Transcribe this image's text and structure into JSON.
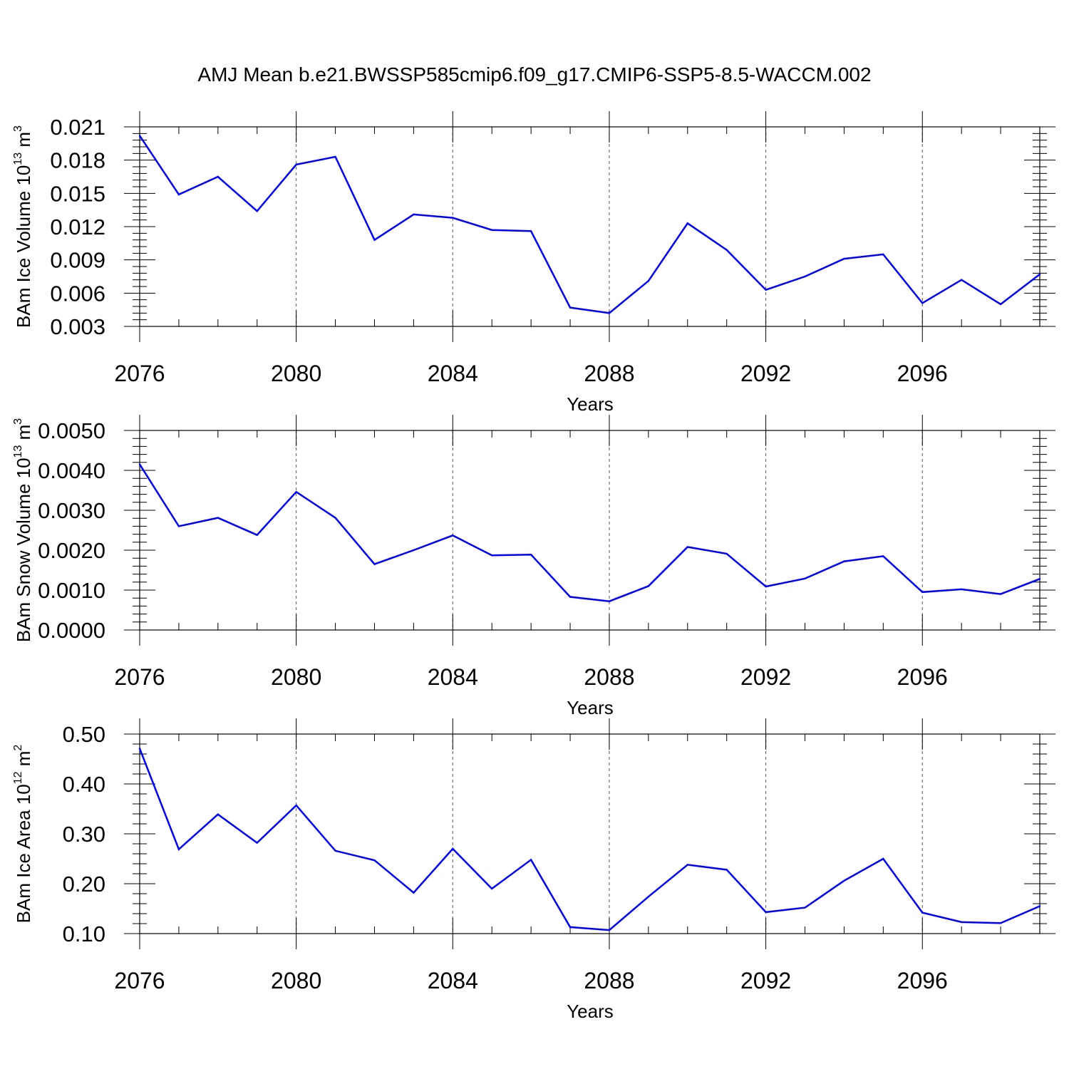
{
  "title": "AMJ Mean b.e21.BWSSP585cmip6.f09_g17.CMIP6-SSP5-8.5-WACCM.002",
  "line_color": "#0000ff",
  "chart_data": [
    {
      "type": "line",
      "title": "AMJ Mean b.e21.BWSSP585cmip6.f09_g17.CMIP6-SSP5-8.5-WACCM.002",
      "xlabel": "Years",
      "ylabel": {
        "main": "BAm Ice Volume 10",
        "exp": "13",
        "unit": " m",
        "unit_exp": "3"
      },
      "xlim": [
        2076,
        2099
      ],
      "ylim": [
        0.003,
        0.021
      ],
      "x_ticks": [
        "2076",
        "2080",
        "2084",
        "2088",
        "2092",
        "2096"
      ],
      "y_ticks": [
        "0.003",
        "0.006",
        "0.009",
        "0.012",
        "0.015",
        "0.018",
        "0.021"
      ],
      "x": [
        2076,
        2077,
        2078,
        2079,
        2080,
        2081,
        2082,
        2083,
        2084,
        2085,
        2086,
        2087,
        2088,
        2089,
        2090,
        2091,
        2092,
        2093,
        2094,
        2095,
        2096,
        2097,
        2098,
        2099
      ],
      "series": [
        {
          "values": [
            0.0202,
            0.0149,
            0.0165,
            0.0134,
            0.0176,
            0.0183,
            0.0108,
            0.0131,
            0.0128,
            0.0117,
            0.0116,
            0.0047,
            0.0042,
            0.0071,
            0.0123,
            0.0099,
            0.0063,
            0.0075,
            0.0091,
            0.0095,
            0.0051,
            0.0072,
            0.005,
            0.0077
          ]
        }
      ],
      "grid": "vertical-dashed-major",
      "legend": "none"
    },
    {
      "type": "line",
      "xlabel": "Years",
      "ylabel": {
        "main": "BAm Snow Volume 10",
        "exp": "13",
        "unit": " m",
        "unit_exp": "3"
      },
      "xlim": [
        2076,
        2099
      ],
      "ylim": [
        0.0,
        0.005
      ],
      "x_ticks": [
        "2076",
        "2080",
        "2084",
        "2088",
        "2092",
        "2096"
      ],
      "y_ticks": [
        "0.0000",
        "0.0010",
        "0.0020",
        "0.0030",
        "0.0040",
        "0.0050"
      ],
      "x": [
        2076,
        2077,
        2078,
        2079,
        2080,
        2081,
        2082,
        2083,
        2084,
        2085,
        2086,
        2087,
        2088,
        2089,
        2090,
        2091,
        2092,
        2093,
        2094,
        2095,
        2096,
        2097,
        2098,
        2099
      ],
      "series": [
        {
          "values": [
            0.00415,
            0.0026,
            0.00281,
            0.00238,
            0.00346,
            0.00281,
            0.00165,
            0.002,
            0.00237,
            0.00187,
            0.00189,
            0.00083,
            0.00072,
            0.0011,
            0.00208,
            0.00191,
            0.00109,
            0.00129,
            0.00172,
            0.00185,
            0.00095,
            0.00102,
            0.0009,
            0.00128
          ]
        }
      ],
      "grid": "vertical-dashed-major",
      "legend": "none"
    },
    {
      "type": "line",
      "xlabel": "Years",
      "ylabel": {
        "main": "BAm Ice Area 10",
        "exp": "12",
        "unit": " m",
        "unit_exp": "2"
      },
      "xlim": [
        2076,
        2099
      ],
      "ylim": [
        0.1,
        0.5
      ],
      "x_ticks": [
        "2076",
        "2080",
        "2084",
        "2088",
        "2092",
        "2096"
      ],
      "y_ticks": [
        "0.10",
        "0.20",
        "0.30",
        "0.40",
        "0.50"
      ],
      "x": [
        2076,
        2077,
        2078,
        2079,
        2080,
        2081,
        2082,
        2083,
        2084,
        2085,
        2086,
        2087,
        2088,
        2089,
        2090,
        2091,
        2092,
        2093,
        2094,
        2095,
        2096,
        2097,
        2098,
        2099
      ],
      "series": [
        {
          "values": [
            0.471,
            0.269,
            0.339,
            0.282,
            0.357,
            0.266,
            0.247,
            0.182,
            0.27,
            0.19,
            0.248,
            0.113,
            0.107,
            0.174,
            0.238,
            0.228,
            0.143,
            0.152,
            0.206,
            0.25,
            0.142,
            0.123,
            0.121,
            0.155
          ]
        }
      ],
      "grid": "vertical-dashed-major",
      "legend": "none"
    }
  ]
}
